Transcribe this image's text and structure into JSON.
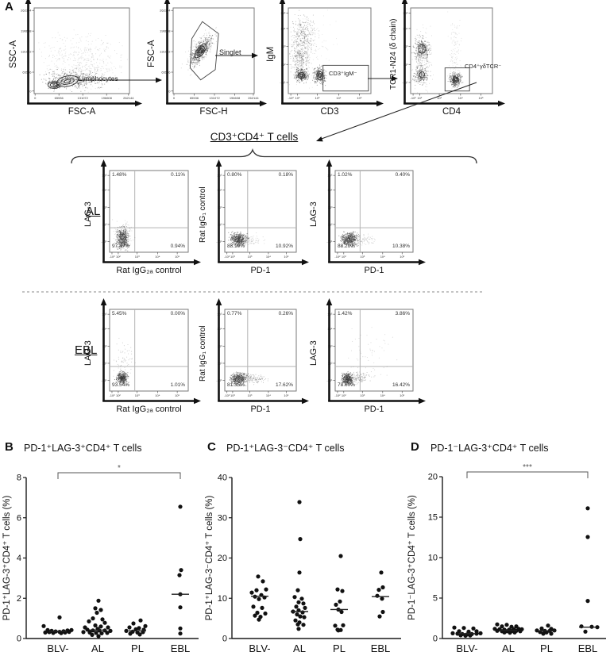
{
  "figure": {
    "panels": {
      "A": {
        "letter": "A",
        "gating_title": "CD3⁺CD4⁺ T cells",
        "rows": {
          "al": "AL",
          "ebl": "EBL"
        },
        "axis_ticks": {
          "linear_x": [
            "0",
            "65536",
            "131072",
            "196608",
            "262144"
          ],
          "linear_y": [
            "262144",
            "196608",
            "131072",
            "65536",
            "0"
          ],
          "log_x": [
            "-10²",
            "10²",
            "10³",
            "10⁴",
            "10⁵"
          ],
          "log_y": [
            "10⁵",
            "10⁴",
            "10³",
            "10²",
            "-10¹"
          ]
        },
        "flow_plots": {
          "p1": {
            "ylabel": "SSC-A",
            "xlabel": "FSC-A",
            "gate": "Lymphocytes"
          },
          "p2": {
            "ylabel": "FSC-A",
            "xlabel": "FSC-H",
            "gate": "Singlet"
          },
          "p3": {
            "ylabel": "IgM",
            "xlabel": "CD3",
            "gate": "CD3⁺IgM⁻"
          },
          "p4": {
            "ylabel": "TCR1-N24 (δ chain)",
            "xlabel": "CD4",
            "gate": "CD4⁺γδTCR⁻"
          },
          "a1": {
            "ylabel": "LAG-3",
            "xlabel": "Rat IgG₂ₐ control",
            "quadrants": {
              "tl": "1.48%",
              "tr": "0.11%",
              "bl": "97.47%",
              "br": "0.94%"
            }
          },
          "a2": {
            "ylabel": "Rat IgG₁ control",
            "xlabel": "PD-1",
            "quadrants": {
              "tl": "0.80%",
              "tr": "0.18%",
              "bl": "88.10%",
              "br": "10.92%"
            }
          },
          "a3": {
            "ylabel": "LAG-3",
            "xlabel": "PD-1",
            "quadrants": {
              "tl": "1.02%",
              "tr": "0.40%",
              "bl": "88.20%",
              "br": "10.38%"
            }
          },
          "e1": {
            "ylabel": "LAG-3",
            "xlabel": "Rat IgG₂ₐ control",
            "quadrants": {
              "tl": "5.45%",
              "tr": "0.00%",
              "bl": "93.54%",
              "br": "1.01%"
            }
          },
          "e2": {
            "ylabel": "Rat IgG₁ control",
            "xlabel": "PD-1",
            "quadrants": {
              "tl": "0.77%",
              "tr": "0.26%",
              "bl": "81.35%",
              "br": "17.62%"
            }
          },
          "e3": {
            "ylabel": "LAG-3",
            "xlabel": "PD-1",
            "quadrants": {
              "tl": "1.42%",
              "tr": "3.86%",
              "bl": "78.60%",
              "br": "16.42%"
            }
          }
        }
      },
      "B": {
        "letter": "B",
        "title": "PD-1⁺LAG-3⁺CD4⁺ T cells"
      },
      "C": {
        "letter": "C",
        "title": "PD-1⁺LAG-3⁻CD4⁺ T cells"
      },
      "D": {
        "letter": "D",
        "title": "PD-1⁻LAG-3⁺CD4⁺ T cells"
      }
    }
  },
  "chart_data": [
    {
      "type": "scatter",
      "panel": "B",
      "title": "PD-1⁺LAG-3⁺CD4⁺ T cells",
      "ylabel": "PD-1⁺LAG-3⁺CD4⁺ T cells (%)",
      "ylim": [
        0,
        8
      ],
      "yticks": [
        0,
        2,
        4,
        6,
        8
      ],
      "categories": [
        "BLV-",
        "AL",
        "PL",
        "EBL"
      ],
      "significance": {
        "from": "BLV-",
        "to": "EBL",
        "label": "*"
      },
      "series": [
        {
          "category": "BLV-",
          "median": 0.36,
          "points": [
            [
              -18,
              0.62
            ],
            [
              2,
              1.05
            ],
            [
              -13,
              0.42
            ],
            [
              -8,
              0.38
            ],
            [
              -3,
              0.35
            ],
            [
              2,
              0.33
            ],
            [
              7,
              0.36
            ],
            [
              12,
              0.4
            ],
            [
              17,
              0.42
            ],
            [
              -16,
              0.3
            ],
            [
              -6,
              0.28
            ],
            [
              4,
              0.27
            ],
            [
              9,
              0.3
            ],
            [
              14,
              0.33
            ],
            [
              -11,
              0.32
            ]
          ]
        },
        {
          "category": "AL",
          "median": 0.42,
          "points": [
            [
              1,
              1.88
            ],
            [
              -3,
              1.5
            ],
            [
              4,
              1.42
            ],
            [
              -1,
              1.28
            ],
            [
              -6,
              1.0
            ],
            [
              6,
              0.95
            ],
            [
              -11,
              0.85
            ],
            [
              9,
              0.78
            ],
            [
              -3,
              0.65
            ],
            [
              4,
              0.6
            ],
            [
              -16,
              0.55
            ],
            [
              13,
              0.55
            ],
            [
              0,
              0.48
            ],
            [
              -13,
              0.44
            ],
            [
              -6,
              0.4
            ],
            [
              2,
              0.4
            ],
            [
              9,
              0.4
            ],
            [
              16,
              0.38
            ],
            [
              -18,
              0.32
            ],
            [
              -10,
              0.3
            ],
            [
              -2,
              0.28
            ],
            [
              5,
              0.26
            ],
            [
              12,
              0.28
            ],
            [
              -7,
              0.18
            ],
            [
              1,
              0.12
            ]
          ]
        },
        {
          "category": "PL",
          "median": 0.38,
          "points": [
            [
              4,
              0.9
            ],
            [
              -5,
              0.75
            ],
            [
              10,
              0.62
            ],
            [
              -10,
              0.55
            ],
            [
              2,
              0.52
            ],
            [
              -2,
              0.46
            ],
            [
              8,
              0.44
            ],
            [
              -14,
              0.38
            ],
            [
              -6,
              0.34
            ],
            [
              0,
              0.3
            ],
            [
              7,
              0.32
            ],
            [
              -9,
              0.24
            ],
            [
              3,
              0.2
            ]
          ]
        },
        {
          "category": "EBL",
          "median": 2.2,
          "points": [
            [
              0,
              6.55
            ],
            [
              1,
              3.4
            ],
            [
              -1,
              3.15
            ],
            [
              0,
              2.2
            ],
            [
              0,
              1.55
            ],
            [
              0,
              0.5
            ],
            [
              0,
              0.25
            ]
          ]
        }
      ]
    },
    {
      "type": "scatter",
      "panel": "C",
      "title": "PD-1⁺LAG-3⁻CD4⁺ T cells",
      "ylabel": "PD-1⁺LAG-3⁻CD4⁺ T cells (%)",
      "ylim": [
        0,
        40
      ],
      "yticks": [
        0,
        10,
        20,
        30,
        40
      ],
      "categories": [
        "BLV-",
        "AL",
        "PL",
        "EBL"
      ],
      "significance": null,
      "series": [
        {
          "category": "BLV-",
          "median": 10.5,
          "points": [
            [
              -2,
              15.4
            ],
            [
              4,
              14.2
            ],
            [
              8,
              12.2
            ],
            [
              -4,
              12.0
            ],
            [
              -10,
              11.4
            ],
            [
              2,
              10.8
            ],
            [
              -6,
              10.4
            ],
            [
              6,
              10.2
            ],
            [
              -1,
              9.8
            ],
            [
              -8,
              7.9
            ],
            [
              3,
              7.6
            ],
            [
              -3,
              6.4
            ],
            [
              7,
              6.2
            ],
            [
              -6,
              5.7
            ],
            [
              1,
              5.4
            ],
            [
              -1,
              4.7
            ]
          ]
        },
        {
          "category": "AL",
          "median": 6.7,
          "points": [
            [
              0,
              33.9
            ],
            [
              1,
              24.7
            ],
            [
              0,
              16.4
            ],
            [
              -2,
              12.0
            ],
            [
              -6,
              10.3
            ],
            [
              3,
              9.9
            ],
            [
              -1,
              9.0
            ],
            [
              5,
              8.7
            ],
            [
              -4,
              7.9
            ],
            [
              7,
              7.6
            ],
            [
              -1,
              7.0
            ],
            [
              -8,
              6.7
            ],
            [
              4,
              6.5
            ],
            [
              -3,
              6.0
            ],
            [
              1,
              5.5
            ],
            [
              6,
              5.3
            ],
            [
              -5,
              4.5
            ],
            [
              0,
              4.0
            ],
            [
              -2,
              3.5
            ],
            [
              5,
              3.4
            ],
            [
              -1,
              2.4
            ]
          ]
        },
        {
          "category": "PL",
          "median": 7.2,
          "points": [
            [
              2,
              20.5
            ],
            [
              -2,
              12.2
            ],
            [
              4,
              11.8
            ],
            [
              1,
              9.2
            ],
            [
              -4,
              8.4
            ],
            [
              -1,
              7.2
            ],
            [
              3,
              6.6
            ],
            [
              -5,
              3.2
            ],
            [
              5,
              3.3
            ],
            [
              -2,
              2.2
            ],
            [
              2,
              2.1
            ],
            [
              -1,
              2.0
            ]
          ]
        },
        {
          "category": "EBL",
          "median": 10.4,
          "points": [
            [
              1,
              16.4
            ],
            [
              3,
              12.7
            ],
            [
              -2,
              12.1
            ],
            [
              -4,
              10.6
            ],
            [
              2,
              9.9
            ],
            [
              3,
              6.6
            ],
            [
              -1,
              5.5
            ]
          ]
        }
      ]
    },
    {
      "type": "scatter",
      "panel": "D",
      "title": "PD-1⁻LAG-3⁺CD4⁺ T cells",
      "ylabel": "PD-1⁻LAG-3⁺CD4⁺ T cells (%)",
      "ylim": [
        0,
        20
      ],
      "yticks": [
        0,
        5,
        10,
        15,
        20
      ],
      "categories": [
        "BLV-",
        "AL",
        "PL",
        "EBL"
      ],
      "significance": {
        "from": "BLV-",
        "to": "EBL",
        "label": "***"
      },
      "series": [
        {
          "category": "BLV-",
          "median": 0.6,
          "points": [
            [
              -16,
              1.35
            ],
            [
              -4,
              1.3
            ],
            [
              8,
              1.25
            ],
            [
              -10,
              0.9
            ],
            [
              2,
              0.85
            ],
            [
              12,
              0.9
            ],
            [
              -18,
              0.65
            ],
            [
              -12,
              0.6
            ],
            [
              -6,
              0.55
            ],
            [
              0,
              0.5
            ],
            [
              6,
              0.55
            ],
            [
              12,
              0.6
            ],
            [
              17,
              0.65
            ],
            [
              -8,
              0.4
            ],
            [
              -2,
              0.35
            ],
            [
              4,
              0.38
            ]
          ]
        },
        {
          "category": "AL",
          "median": 1.0,
          "points": [
            [
              -14,
              1.75
            ],
            [
              -2,
              1.7
            ],
            [
              -8,
              1.5
            ],
            [
              4,
              1.45
            ],
            [
              10,
              1.5
            ],
            [
              -17,
              1.2
            ],
            [
              -11,
              1.15
            ],
            [
              -5,
              1.1
            ],
            [
              1,
              1.1
            ],
            [
              7,
              1.15
            ],
            [
              13,
              1.2
            ],
            [
              17,
              1.15
            ],
            [
              -14,
              0.95
            ],
            [
              -8,
              0.9
            ],
            [
              -2,
              0.9
            ],
            [
              4,
              0.92
            ],
            [
              10,
              0.95
            ],
            [
              15,
              0.9
            ],
            [
              -5,
              0.75
            ],
            [
              2,
              0.72
            ],
            [
              8,
              0.75
            ]
          ]
        },
        {
          "category": "PL",
          "median": 0.95,
          "points": [
            [
              2,
              1.6
            ],
            [
              -6,
              1.25
            ],
            [
              6,
              1.2
            ],
            [
              -12,
              1.0
            ],
            [
              -2,
              0.95
            ],
            [
              4,
              0.95
            ],
            [
              10,
              1.0
            ],
            [
              -8,
              0.8
            ],
            [
              0,
              0.75
            ],
            [
              -4,
              0.6
            ],
            [
              6,
              0.6
            ]
          ]
        },
        {
          "category": "EBL",
          "median": 1.4,
          "points": [
            [
              0,
              16.1
            ],
            [
              0,
              12.55
            ],
            [
              0,
              4.65
            ],
            [
              -8,
              1.5
            ],
            [
              5,
              1.45
            ],
            [
              12,
              1.4
            ],
            [
              -3,
              0.85
            ]
          ]
        }
      ]
    }
  ]
}
